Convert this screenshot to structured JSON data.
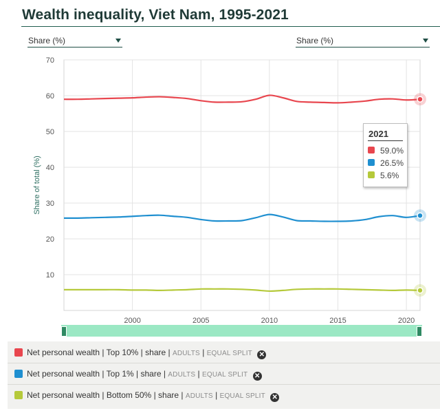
{
  "page": {
    "title": "Wealth inequality, Viet Nam, 1995-2021",
    "select_left": "Share (%)",
    "select_right": "Share (%)"
  },
  "tooltip": {
    "year": "2021",
    "rows": [
      {
        "value": "59.0%",
        "color": "#e8464e"
      },
      {
        "value": "26.5%",
        "color": "#1f8fd0"
      },
      {
        "value": "5.6%",
        "color": "#b5c93a"
      }
    ]
  },
  "legend": {
    "items": [
      {
        "color": "#e8464e",
        "variable": "Net personal wealth",
        "group": "Top 10%",
        "measure": "share",
        "pop": "ADULTS",
        "unit": "EQUAL SPLIT"
      },
      {
        "color": "#1f8fd0",
        "variable": "Net personal wealth",
        "group": "Top 1%",
        "measure": "share",
        "pop": "ADULTS",
        "unit": "EQUAL SPLIT"
      },
      {
        "color": "#b5c93a",
        "variable": "Net personal wealth",
        "group": "Bottom 50%",
        "measure": "share",
        "pop": "ADULTS",
        "unit": "EQUAL SPLIT"
      }
    ],
    "remove_icon": "close-icon"
  },
  "chart_data": {
    "type": "line",
    "title": "Wealth inequality, Viet Nam, 1995-2021",
    "xlabel": "",
    "ylabel": "Share of total (%)",
    "xlim": [
      1995,
      2021
    ],
    "ylim": [
      0,
      70
    ],
    "x_ticks": [
      2000,
      2005,
      2010,
      2015,
      2020
    ],
    "y_ticks": [
      10,
      20,
      30,
      40,
      50,
      60,
      70
    ],
    "grid": true,
    "x": [
      1995,
      1996,
      1997,
      1998,
      1999,
      2000,
      2001,
      2002,
      2003,
      2004,
      2005,
      2006,
      2007,
      2008,
      2009,
      2010,
      2011,
      2012,
      2013,
      2014,
      2015,
      2016,
      2017,
      2018,
      2019,
      2020,
      2021
    ],
    "series": [
      {
        "color": "#e8464e",
        "values": [
          59.0,
          59.0,
          59.1,
          59.2,
          59.3,
          59.4,
          59.6,
          59.7,
          59.5,
          59.2,
          58.6,
          58.2,
          58.2,
          58.3,
          59.0,
          60.1,
          59.4,
          58.4,
          58.2,
          58.1,
          58.0,
          58.2,
          58.5,
          59.0,
          59.1,
          58.8,
          59.0
        ]
      },
      {
        "color": "#1f8fd0",
        "values": [
          25.8,
          25.8,
          25.9,
          26.0,
          26.1,
          26.3,
          26.5,
          26.6,
          26.3,
          26.0,
          25.4,
          25.0,
          25.0,
          25.1,
          25.9,
          26.8,
          26.1,
          25.1,
          25.0,
          24.9,
          24.9,
          25.0,
          25.4,
          26.2,
          26.5,
          26.0,
          26.5
        ]
      },
      {
        "color": "#b5c93a",
        "values": [
          5.8,
          5.8,
          5.8,
          5.8,
          5.8,
          5.7,
          5.7,
          5.6,
          5.7,
          5.8,
          6.0,
          6.0,
          6.0,
          5.9,
          5.7,
          5.4,
          5.6,
          5.9,
          6.0,
          6.0,
          6.0,
          5.9,
          5.8,
          5.7,
          5.6,
          5.7,
          5.6
        ]
      }
    ]
  }
}
